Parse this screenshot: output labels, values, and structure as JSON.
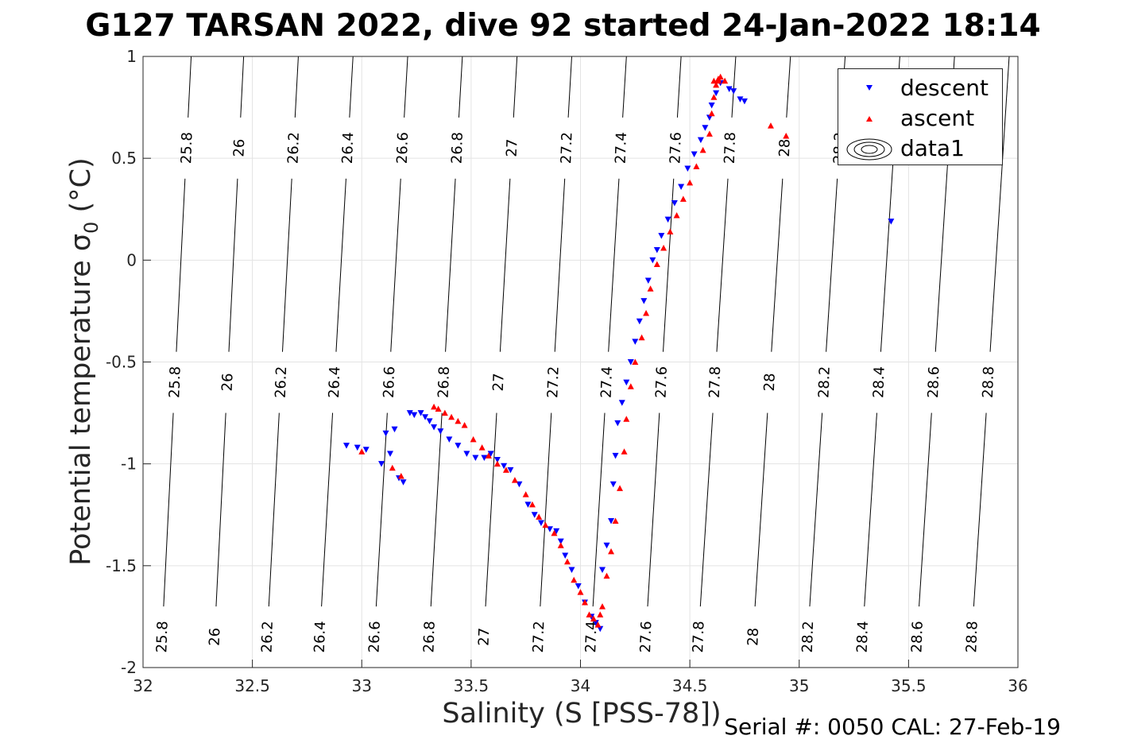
{
  "title": "G127 TARSAN 2022, dive 92 started 24-Jan-2022 18:14",
  "footer": "Serial #: 0050  CAL: 27-Feb-19",
  "chart_data": {
    "type": "scatter",
    "title": "G127 TARSAN 2022, dive 92 started 24-Jan-2022 18:14",
    "xlabel": "Salinity (S [PSS-78])",
    "ylabel_main": "Potential temperature",
    "ylabel_symbol": "σ",
    "ylabel_sub": "0",
    "ylabel_unit": "(°C)",
    "xlim": [
      32,
      36
    ],
    "ylim": [
      -2,
      1
    ],
    "xticks": [
      32,
      32.5,
      33,
      33.5,
      34,
      34.5,
      35,
      35.5,
      36
    ],
    "xtick_labels": [
      "32",
      "32.5",
      "33",
      "33.5",
      "34",
      "34.5",
      "35",
      "35.5",
      "36"
    ],
    "yticks": [
      -2,
      -1.5,
      -1,
      -0.5,
      0,
      0.5,
      1
    ],
    "ytick_labels": [
      "-2",
      "-1.5",
      "-1",
      "-0.5",
      "0",
      "0.5",
      "1"
    ],
    "grid": true,
    "legend_position": "top-right",
    "legend": [
      {
        "label": "descent",
        "marker": "triangle-down",
        "color": "#0000ff"
      },
      {
        "label": "ascent",
        "marker": "triangle-up",
        "color": "#ff0000"
      },
      {
        "label": "data1",
        "marker": "contour",
        "color": "#000000"
      }
    ],
    "density_contours": {
      "levels": [
        "25.8",
        "26",
        "26.2",
        "26.4",
        "26.6",
        "26.8",
        "27",
        "27.2",
        "27.4",
        "27.6",
        "27.8",
        "28",
        "28.2",
        "28.4",
        "28.6",
        "28.8"
      ],
      "salinity_at_theta_minus2": [
        32.08,
        32.32,
        32.56,
        32.8,
        33.05,
        33.3,
        33.55,
        33.8,
        34.04,
        34.29,
        34.53,
        34.78,
        35.03,
        35.28,
        35.53,
        35.78
      ],
      "salinity_at_theta_plus1": [
        32.22,
        32.46,
        32.71,
        32.96,
        33.21,
        33.46,
        33.71,
        33.96,
        34.21,
        34.46,
        34.71,
        34.96,
        35.21,
        35.46,
        35.71,
        35.96
      ],
      "label_temps": [
        -1.85,
        -0.6,
        0.55
      ],
      "top_row_levels": [
        "25.8",
        "26",
        "26.2",
        "26.4",
        "26.6",
        "26.8",
        "27",
        "27.2",
        "27.4",
        "27.6",
        "27.8",
        "28",
        "28.2"
      ]
    },
    "series": [
      {
        "name": "descent",
        "color": "#0000ff",
        "marker": "triangle-down",
        "points": [
          [
            32.93,
            -0.91
          ],
          [
            32.98,
            -0.92
          ],
          [
            33.02,
            -0.93
          ],
          [
            33.09,
            -1.0
          ],
          [
            33.11,
            -0.85
          ],
          [
            33.13,
            -0.95
          ],
          [
            33.15,
            -0.83
          ],
          [
            33.17,
            -1.07
          ],
          [
            33.19,
            -1.09
          ],
          [
            33.22,
            -0.75
          ],
          [
            33.24,
            -0.76
          ],
          [
            33.27,
            -0.75
          ],
          [
            33.29,
            -0.77
          ],
          [
            33.31,
            -0.79
          ],
          [
            33.33,
            -0.82
          ],
          [
            33.36,
            -0.84
          ],
          [
            33.4,
            -0.88
          ],
          [
            33.44,
            -0.91
          ],
          [
            33.48,
            -0.95
          ],
          [
            33.52,
            -0.97
          ],
          [
            33.56,
            -0.97
          ],
          [
            33.59,
            -0.95
          ],
          [
            33.62,
            -0.98
          ],
          [
            33.65,
            -1.01
          ],
          [
            33.68,
            -1.03
          ],
          [
            33.72,
            -1.1
          ],
          [
            33.76,
            -1.2
          ],
          [
            33.79,
            -1.25
          ],
          [
            33.82,
            -1.29
          ],
          [
            33.86,
            -1.32
          ],
          [
            33.89,
            -1.33
          ],
          [
            33.91,
            -1.38
          ],
          [
            33.93,
            -1.45
          ],
          [
            33.96,
            -1.52
          ],
          [
            33.99,
            -1.6
          ],
          [
            34.02,
            -1.68
          ],
          [
            34.05,
            -1.75
          ],
          [
            34.07,
            -1.78
          ],
          [
            34.09,
            -1.81
          ],
          [
            34.1,
            -1.52
          ],
          [
            34.12,
            -1.4
          ],
          [
            34.14,
            -1.28
          ],
          [
            34.15,
            -1.1
          ],
          [
            34.16,
            -0.96
          ],
          [
            34.17,
            -0.8
          ],
          [
            34.19,
            -0.7
          ],
          [
            34.21,
            -0.6
          ],
          [
            34.23,
            -0.5
          ],
          [
            34.25,
            -0.4
          ],
          [
            34.27,
            -0.3
          ],
          [
            34.29,
            -0.2
          ],
          [
            34.31,
            -0.1
          ],
          [
            34.33,
            0.0
          ],
          [
            34.35,
            0.05
          ],
          [
            34.37,
            0.12
          ],
          [
            34.4,
            0.2
          ],
          [
            34.43,
            0.28
          ],
          [
            34.46,
            0.36
          ],
          [
            34.49,
            0.45
          ],
          [
            34.52,
            0.52
          ],
          [
            34.55,
            0.59
          ],
          [
            34.57,
            0.65
          ],
          [
            34.59,
            0.7
          ],
          [
            34.6,
            0.76
          ],
          [
            34.62,
            0.82
          ],
          [
            34.64,
            0.87
          ],
          [
            34.68,
            0.84
          ],
          [
            34.7,
            0.83
          ],
          [
            34.73,
            0.79
          ],
          [
            34.75,
            0.78
          ],
          [
            35.42,
            0.19
          ]
        ]
      },
      {
        "name": "ascent",
        "color": "#ff0000",
        "marker": "triangle-up",
        "points": [
          [
            33.0,
            -0.94
          ],
          [
            33.14,
            -1.02
          ],
          [
            33.18,
            -1.06
          ],
          [
            33.33,
            -0.72
          ],
          [
            33.35,
            -0.73
          ],
          [
            33.38,
            -0.75
          ],
          [
            33.41,
            -0.77
          ],
          [
            33.44,
            -0.79
          ],
          [
            33.47,
            -0.81
          ],
          [
            33.51,
            -0.88
          ],
          [
            33.55,
            -0.92
          ],
          [
            33.58,
            -0.96
          ],
          [
            33.62,
            -1.0
          ],
          [
            33.66,
            -1.03
          ],
          [
            33.7,
            -1.08
          ],
          [
            33.75,
            -1.15
          ],
          [
            33.78,
            -1.2
          ],
          [
            33.81,
            -1.26
          ],
          [
            33.84,
            -1.3
          ],
          [
            33.88,
            -1.34
          ],
          [
            33.91,
            -1.4
          ],
          [
            33.94,
            -1.48
          ],
          [
            33.97,
            -1.57
          ],
          [
            34.0,
            -1.63
          ],
          [
            34.02,
            -1.68
          ],
          [
            34.04,
            -1.74
          ],
          [
            34.06,
            -1.76
          ],
          [
            34.08,
            -1.79
          ],
          [
            34.09,
            -1.74
          ],
          [
            34.1,
            -1.7
          ],
          [
            34.12,
            -1.55
          ],
          [
            34.14,
            -1.43
          ],
          [
            34.16,
            -1.28
          ],
          [
            34.18,
            -1.12
          ],
          [
            34.2,
            -0.94
          ],
          [
            34.21,
            -0.78
          ],
          [
            34.23,
            -0.62
          ],
          [
            34.25,
            -0.5
          ],
          [
            34.28,
            -0.38
          ],
          [
            34.3,
            -0.26
          ],
          [
            34.32,
            -0.14
          ],
          [
            34.35,
            -0.02
          ],
          [
            34.38,
            0.06
          ],
          [
            34.41,
            0.14
          ],
          [
            34.44,
            0.22
          ],
          [
            34.47,
            0.3
          ],
          [
            34.5,
            0.38
          ],
          [
            34.53,
            0.46
          ],
          [
            34.56,
            0.54
          ],
          [
            34.59,
            0.62
          ],
          [
            34.6,
            0.72
          ],
          [
            34.61,
            0.8
          ],
          [
            34.62,
            0.86
          ],
          [
            34.63,
            0.88
          ],
          [
            34.64,
            0.9
          ],
          [
            34.66,
            0.88
          ],
          [
            34.63,
            0.89
          ],
          [
            34.61,
            0.88
          ],
          [
            34.87,
            0.66
          ],
          [
            34.94,
            0.61
          ]
        ]
      }
    ]
  }
}
